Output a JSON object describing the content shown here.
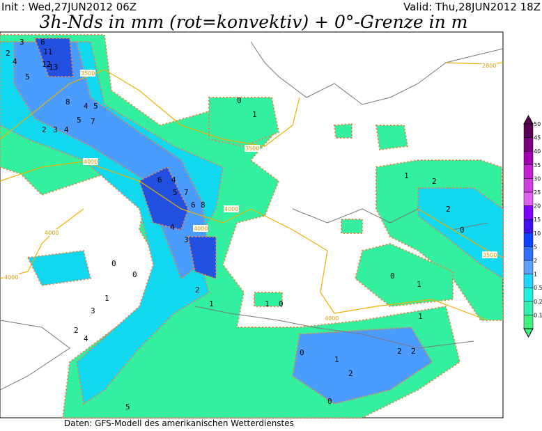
{
  "header": {
    "init": "Init : Wed,27JUN2012 06Z",
    "valid": "Valid: Thu,28JUN2012 18Z",
    "title": "3h-Nds in mm (rot=konvektiv) + 0°-Grenze in m"
  },
  "footer": "Daten: GFS-Modell des amerikanischen Wetterdienstes",
  "colorbar": {
    "labels": [
      "50",
      "45",
      "40",
      "35",
      "30",
      "25",
      "20",
      "15",
      "10",
      "5",
      "2",
      "1",
      "0.5",
      "0.2",
      "0.1"
    ]
  },
  "contour_labels": [
    "3500",
    "2800",
    "3500",
    "4000",
    "4000",
    "4000",
    "4000",
    "4000",
    "3500",
    "4000"
  ],
  "map_labels": [
    "2",
    "3",
    "4",
    "5",
    "6",
    "11",
    "12",
    "13",
    "8",
    "4",
    "5",
    "2",
    "3",
    "4",
    "5",
    "7",
    "6",
    "4",
    "5",
    "7",
    "6",
    "8",
    "4",
    "3",
    "2",
    "1",
    "0",
    "0",
    "0",
    "1",
    "1",
    "2",
    "2",
    "0",
    "1",
    "0",
    "0",
    "1",
    "1",
    "2",
    "2",
    "1",
    "3",
    "2",
    "4",
    "5",
    "0",
    "1",
    "2",
    "0"
  ]
}
